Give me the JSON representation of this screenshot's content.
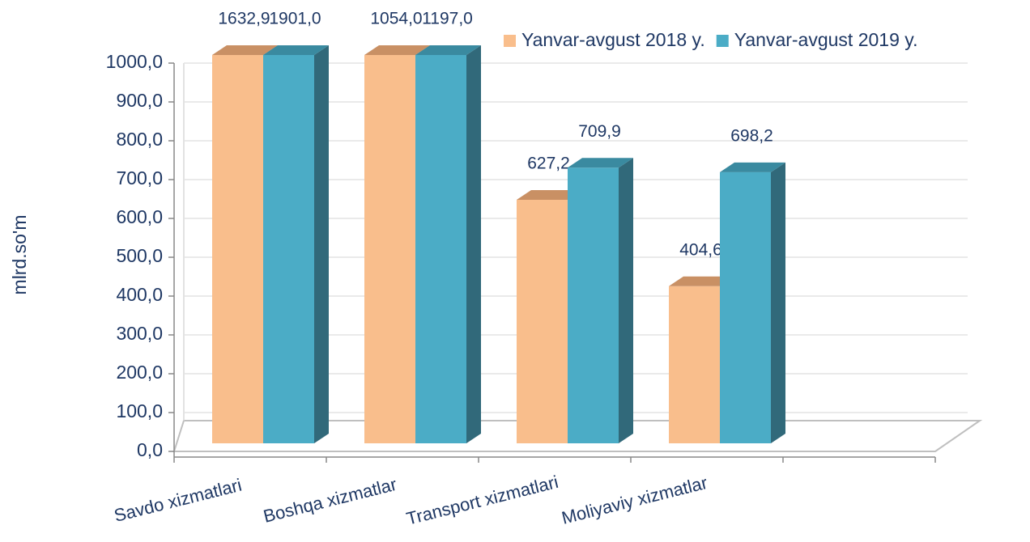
{
  "chart_data": {
    "type": "bar3d",
    "y_label": "mlrd.so'm",
    "categories": [
      "Savdo xizmatlari",
      "Boshqa xizmatlar",
      "Transport xizmatlari",
      "Moliyaviy xizmatlar",
      null
    ],
    "series": [
      {
        "name": "Yanvar-avgust 2018 y.",
        "color": "#f9be8c",
        "values": [
          1632.9,
          1054.0,
          627.2,
          404.6,
          null
        ],
        "value_labels": [
          "1632,9",
          "1054,0",
          "627,2",
          "404,6",
          null
        ]
      },
      {
        "name": "Yanvar-avgust 2019 y.",
        "color": "#4bacc6",
        "values": [
          1901.0,
          1197.0,
          709.9,
          698.2,
          null
        ],
        "value_labels": [
          "1901,0",
          "1197,0",
          "709,9",
          "698,2",
          null
        ]
      }
    ],
    "ylim": [
      0,
      1000
    ],
    "yticks": [
      {
        "value": 0,
        "label": "0,0"
      },
      {
        "value": 100,
        "label": "100,0"
      },
      {
        "value": 200,
        "label": "200,0"
      },
      {
        "value": 300,
        "label": "300,0"
      },
      {
        "value": 400,
        "label": "400,0"
      },
      {
        "value": 500,
        "label": "500,0"
      },
      {
        "value": 600,
        "label": "600,0"
      },
      {
        "value": 700,
        "label": "700,0"
      },
      {
        "value": 800,
        "label": "800,0"
      },
      {
        "value": 900,
        "label": "900,0"
      },
      {
        "value": 1000,
        "label": "1000,0"
      }
    ],
    "grid": true,
    "legend": "top-right"
  }
}
